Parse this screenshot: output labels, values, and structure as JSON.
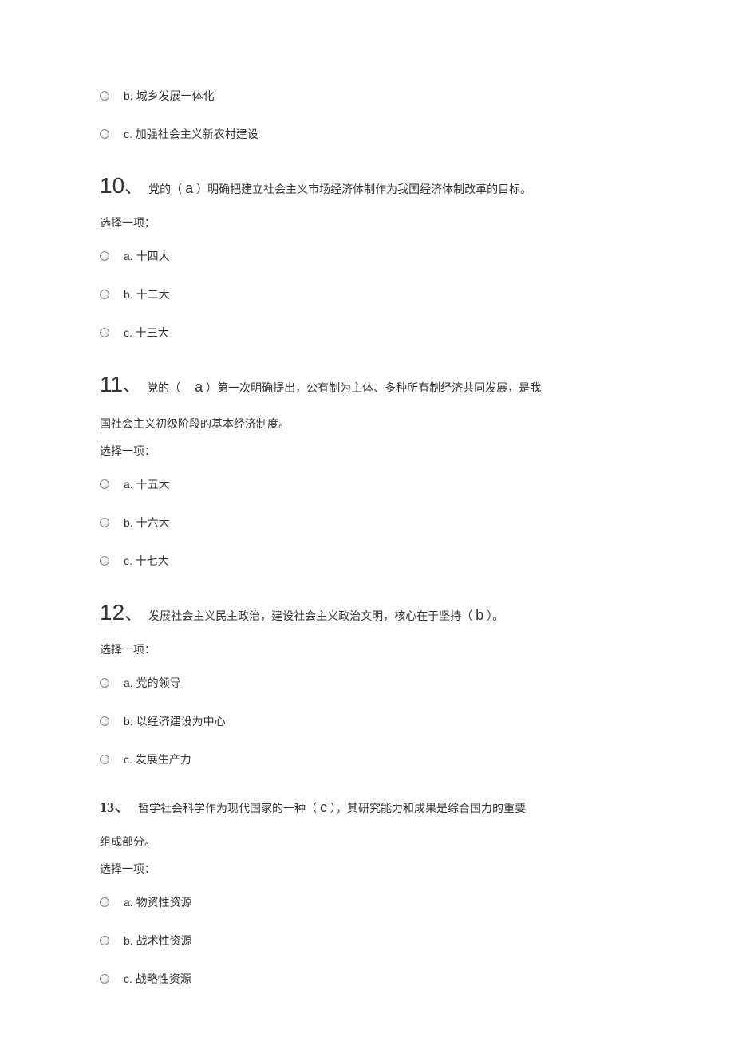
{
  "orphan_options": [
    {
      "label": "b. 城乡发展一体化"
    },
    {
      "label": "c. 加强社会主义新农村建设"
    }
  ],
  "questions": [
    {
      "num": "10",
      "num_style": "arial",
      "text_pre": "党的（",
      "answer": "a",
      "text_post": "）明确把建立社会主义市场经济体制作为我国经济体制改革的目标。",
      "continuation": "",
      "prompt": "选择一项：",
      "options": [
        {
          "label": "a. 十四大"
        },
        {
          "label": "b. 十二大"
        },
        {
          "label": "c. 十三大"
        }
      ]
    },
    {
      "num": "11",
      "num_style": "arial",
      "text_pre": "党的（　",
      "answer": "a",
      "text_post": "）第一次明确提出，公有制为主体、多种所有制经济共同发展，是我",
      "continuation": "国社会主义初级阶段的基本经济制度。",
      "prompt": "选择一项：",
      "options": [
        {
          "label": "a. 十五大"
        },
        {
          "label": "b. 十六大"
        },
        {
          "label": "c. 十七大"
        }
      ]
    },
    {
      "num": "12",
      "num_style": "arial",
      "text_pre": "发展社会主义民主政治，建设社会主义政治文明，核心在于坚持（",
      "answer": "b",
      "text_post": "）。",
      "continuation": "",
      "prompt": "选择一项：",
      "options": [
        {
          "label": "a. 党的领导"
        },
        {
          "label": "b. 以经济建设为中心"
        },
        {
          "label": "c. 发展生产力"
        }
      ]
    },
    {
      "num": "13",
      "num_style": "bold",
      "text_pre": "哲学社会科学作为现代国家的一种（",
      "answer": "c",
      "text_post": "），其研究能力和成果是综合国力的重要",
      "continuation": "组成部分。",
      "prompt": "选择一项：",
      "options": [
        {
          "label": "a. 物资性资源"
        },
        {
          "label": "b. 战术性资源"
        },
        {
          "label": "c. 战略性资源"
        }
      ]
    }
  ]
}
